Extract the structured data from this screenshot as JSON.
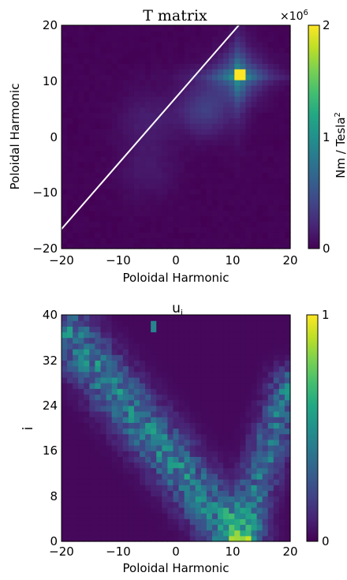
{
  "figure": {
    "panels": [
      {
        "id": "t-matrix",
        "title": "T matrix",
        "xlabel": "Poloidal Harmonic",
        "ylabel": "Poloidal Harmonic",
        "xlim": [
          -20,
          20
        ],
        "ylim": [
          -20,
          20
        ],
        "xticks": [
          "−20",
          "−10",
          "0",
          "10",
          "20"
        ],
        "yticks": [
          "−20",
          "−10",
          "0",
          "10",
          "20"
        ],
        "colorbar": {
          "label": "Nm / Tesla",
          "label_sup": "2",
          "multiplier": "×10",
          "multiplier_exp": "6",
          "ticks": [
            "0",
            "1",
            "2"
          ],
          "range": [
            0,
            2
          ]
        }
      },
      {
        "id": "u-i",
        "title": "u",
        "title_sub": "i",
        "xlabel": "Poloidal Harmonic",
        "ylabel": "i",
        "xlim": [
          -20,
          20
        ],
        "ylim": [
          0,
          40
        ],
        "xticks": [
          "−20",
          "−10",
          "0",
          "10",
          "20"
        ],
        "yticks": [
          "0",
          "8",
          "16",
          "24",
          "32",
          "40"
        ],
        "colorbar": {
          "ticks": [
            "0",
            "1"
          ],
          "range": [
            0,
            1
          ]
        }
      }
    ]
  },
  "chart_data": [
    {
      "type": "heatmap",
      "title": "T matrix",
      "xlabel": "Poloidal Harmonic",
      "ylabel": "Poloidal Harmonic",
      "x_range": [
        -20,
        20
      ],
      "y_range": [
        -20,
        20
      ],
      "value_range": [
        0,
        2000000
      ],
      "value_units": "Nm / Tesla^2",
      "colormap": "viridis",
      "grid_cells": [
        41,
        41
      ],
      "features": {
        "peak": {
          "m": 11,
          "n": 11,
          "value": 2000000
        },
        "cross_spread": {
          "center": [
            11,
            11
          ],
          "width": 3,
          "decay": "moderate"
        },
        "secondary_blob": {
          "center": [
            5,
            5
          ],
          "value": 350000
        },
        "faint_regions": [
          {
            "center": [
              -5,
              3
            ],
            "value": 150000
          },
          {
            "center": [
              -5,
              -6
            ],
            "value": 120000
          }
        ]
      },
      "overlay_line": {
        "x": [
          -20,
          11
        ],
        "y": [
          -16.5,
          20
        ],
        "color": "#ffffff"
      }
    },
    {
      "type": "heatmap",
      "title": "u_i",
      "xlabel": "Poloidal Harmonic",
      "ylabel": "i",
      "x_range": [
        -20,
        20
      ],
      "y_range": [
        0,
        40
      ],
      "value_range": [
        0,
        1
      ],
      "colormap": "viridis",
      "grid_cells": [
        41,
        40
      ],
      "features": {
        "left_branch": {
          "from": [
            -19,
            37
          ],
          "to": [
            11,
            0
          ],
          "value": 0.45
        },
        "right_branch": {
          "from": [
            11,
            0
          ],
          "to": [
            20,
            28
          ],
          "value": 0.4
        },
        "bright_points": [
          {
            "m": 11,
            "i": 0,
            "value": 0.85
          },
          {
            "m": 10,
            "i": 2,
            "value": 0.7
          },
          {
            "m": 9,
            "i": 5,
            "value": 0.65
          },
          {
            "m": -4,
            "i": 38,
            "value": 0.45
          }
        ]
      }
    }
  ],
  "colors": {
    "viridis": [
      "#440154",
      "#482475",
      "#414487",
      "#355f8d",
      "#2a788e",
      "#21918c",
      "#22a884",
      "#44bf70",
      "#7ad151",
      "#bddf26",
      "#fde725"
    ],
    "overlay_line": "#ffffff"
  }
}
